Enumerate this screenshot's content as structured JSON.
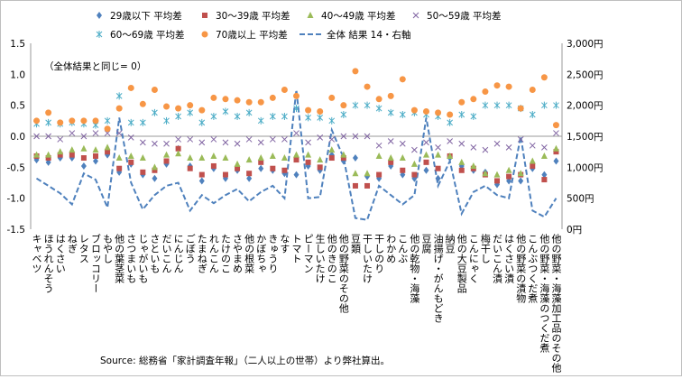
{
  "chart_data": {
    "type": "scatter+line",
    "legend_placement": "top",
    "legend": [
      {
        "name": "29歳以下 平均差",
        "marker": "diamond",
        "color": "#4f81bd"
      },
      {
        "name": "30～39歳 平均差",
        "marker": "square",
        "color": "#c0504d"
      },
      {
        "name": "40～49歳 平均差",
        "marker": "triangle",
        "color": "#9bbb59"
      },
      {
        "name": "50～59歳 平均差",
        "marker": "x",
        "color": "#8064a2"
      },
      {
        "name": "60～69歳 平均差",
        "marker": "asterisk",
        "color": "#4bacc6"
      },
      {
        "name": "70歳以上 平均差",
        "marker": "circle",
        "color": "#f79646"
      },
      {
        "name": "全体 結果 14・右軸",
        "marker": "dash-line",
        "color": "#4f81bd"
      }
    ],
    "annotation": "（全体結果と同じ= 0）",
    "source": "Source: 総務省「家計調査年報」（二人以上の世帯）より弊社算出。",
    "grid": false,
    "y_left": {
      "min": -1.5,
      "max": 1.5,
      "step": 0.5,
      "tick_labels": [
        "1.5",
        "1.0",
        "0.5",
        "0.0",
        "-0.5",
        "-1.0",
        "-1.5"
      ]
    },
    "y_right": {
      "min": 0,
      "max": 3000,
      "step": 500,
      "tick_labels": [
        "3,000円",
        "2,500円",
        "2,000円",
        "1,500円",
        "1,000円",
        "500円",
        "0円"
      ]
    },
    "categories": [
      "キャベツ",
      "ほうれんそう",
      "はくさい",
      "ねぎ",
      "レタス",
      "ブロッコリー",
      "もやし",
      "他の葉茎菜",
      "さつまいも",
      "じゃがいも",
      "さといも",
      "だいこん",
      "にんじん",
      "ごぼう",
      "たまねぎ",
      "れんこん",
      "たけのこ",
      "さやまめ",
      "他の根菜",
      "かぼちゃ",
      "きゅうり",
      "なす",
      "トマト",
      "ピーマン",
      "生しいたけ",
      "他のきのこ",
      "他の野菜のその他",
      "豆類",
      "干しいたけ",
      "干しのり",
      "わかめ",
      "こんぶ",
      "他の乾物・海藻",
      "豆腐",
      "油揚げ・がんもどき",
      "納豆",
      "他の大豆製品",
      "こんにゃく",
      "梅干し",
      "だいこん漬",
      "はくさい漬",
      "他の野菜の漬物",
      "こんぶつくだ煮",
      "他の野菜・海藻のつくだ煮",
      "他の野菜・海藻加工品のその他"
    ],
    "series": [
      {
        "name": "29歳以下 平均差",
        "values": [
          -0.38,
          -0.42,
          -0.35,
          -0.35,
          -0.48,
          -0.4,
          -0.3,
          -0.58,
          -0.45,
          -0.62,
          -0.68,
          -0.45,
          -0.2,
          -0.48,
          -0.72,
          -0.52,
          -0.68,
          -0.55,
          -0.68,
          -0.52,
          -0.55,
          -0.6,
          -0.62,
          -0.48,
          -0.55,
          -0.3,
          -0.4,
          -0.35,
          -0.65,
          -0.68,
          -0.48,
          -0.62,
          -0.68,
          -0.55,
          -0.68,
          -0.35,
          -0.48,
          -0.55,
          -0.58,
          -0.78,
          -0.72,
          -0.72,
          -0.52,
          -0.62,
          -0.4
        ]
      },
      {
        "name": "30～39歳 平均差",
        "values": [
          -0.32,
          -0.35,
          -0.3,
          -0.3,
          -0.35,
          -0.32,
          -0.25,
          -0.52,
          -0.42,
          -0.58,
          -0.55,
          -0.4,
          -0.2,
          -0.52,
          -0.62,
          -0.48,
          -0.62,
          -0.52,
          -0.6,
          -0.42,
          -0.52,
          -0.55,
          -0.38,
          -0.42,
          -0.5,
          -0.35,
          -0.35,
          -0.8,
          -0.8,
          -0.62,
          -0.42,
          -0.55,
          -0.62,
          -0.42,
          -0.52,
          -0.32,
          -0.55,
          -0.52,
          -0.62,
          -0.72,
          -0.65,
          -0.62,
          -0.48,
          -0.7,
          -0.25
        ]
      },
      {
        "name": "40～49歳 平均差",
        "values": [
          -0.3,
          -0.3,
          -0.25,
          -0.22,
          -0.2,
          -0.22,
          -0.18,
          -0.35,
          -0.32,
          -0.35,
          -0.5,
          -0.3,
          -0.28,
          -0.35,
          -0.35,
          -0.32,
          -0.35,
          -0.45,
          -0.38,
          -0.35,
          -0.32,
          -0.35,
          -0.3,
          -0.3,
          -0.38,
          -0.22,
          -0.3,
          -0.6,
          -0.6,
          -0.32,
          -0.35,
          -0.35,
          -0.45,
          -0.3,
          -0.3,
          -0.32,
          -0.42,
          -0.48,
          -0.6,
          -0.62,
          -0.55,
          -0.6,
          -0.4,
          -0.32,
          -0.2
        ]
      },
      {
        "name": "50～59歳 平均差",
        "values": [
          0.0,
          0.0,
          -0.05,
          0.05,
          0.0,
          0.05,
          0.05,
          0.05,
          -0.02,
          -0.1,
          -0.12,
          -0.12,
          -0.05,
          -0.05,
          -0.1,
          -0.05,
          -0.1,
          -0.12,
          -0.05,
          -0.1,
          -0.05,
          -0.05,
          0.05,
          -0.1,
          -0.02,
          -0.05,
          0.0,
          0.0,
          0.0,
          -0.15,
          -0.08,
          -0.12,
          -0.22,
          -0.1,
          -0.18,
          -0.08,
          -0.12,
          -0.18,
          -0.22,
          -0.12,
          -0.18,
          -0.05,
          -0.15,
          -0.18,
          0.05
        ]
      },
      {
        "name": "60～69歳 平均差",
        "values": [
          0.2,
          0.22,
          0.2,
          0.22,
          0.2,
          0.18,
          0.25,
          0.65,
          0.22,
          0.22,
          0.38,
          0.25,
          0.32,
          0.38,
          0.22,
          0.32,
          0.4,
          0.32,
          0.38,
          0.25,
          0.32,
          0.32,
          0.45,
          0.3,
          0.3,
          0.25,
          0.35,
          0.5,
          0.5,
          0.45,
          0.38,
          0.35,
          0.38,
          0.35,
          0.32,
          0.22,
          0.35,
          0.32,
          0.5,
          0.5,
          0.5,
          0.45,
          0.35,
          0.5,
          0.5
        ]
      },
      {
        "name": "70歳以上 平均差",
        "values": [
          0.25,
          0.38,
          0.22,
          0.25,
          0.25,
          0.25,
          0.12,
          0.45,
          0.78,
          0.52,
          0.75,
          0.48,
          0.45,
          0.5,
          0.42,
          0.62,
          0.6,
          0.58,
          0.55,
          0.55,
          0.62,
          0.75,
          0.65,
          0.42,
          0.4,
          0.62,
          0.5,
          1.05,
          0.8,
          0.6,
          0.65,
          0.92,
          0.42,
          0.4,
          0.38,
          0.35,
          0.55,
          0.6,
          0.72,
          0.82,
          0.8,
          0.45,
          0.75,
          0.95,
          0.18
        ]
      },
      {
        "name": "全体 結果 14・右軸",
        "axis": "right",
        "values": [
          820,
          700,
          580,
          400,
          900,
          800,
          350,
          1800,
          750,
          320,
          550,
          700,
          750,
          300,
          550,
          420,
          550,
          650,
          450,
          600,
          700,
          500,
          2250,
          500,
          520,
          1600,
          1150,
          180,
          150,
          700,
          550,
          400,
          550,
          1800,
          700,
          1100,
          250,
          600,
          700,
          550,
          500,
          1500,
          300,
          200,
          500
        ]
      }
    ]
  }
}
